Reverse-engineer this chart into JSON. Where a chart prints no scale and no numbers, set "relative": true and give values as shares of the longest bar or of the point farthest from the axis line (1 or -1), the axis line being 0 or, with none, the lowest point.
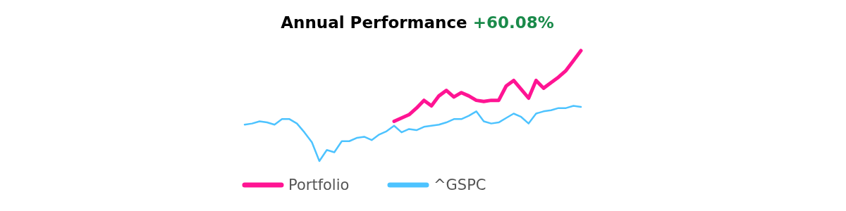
{
  "chart_data": {
    "type": "line",
    "title": "Annual Performance",
    "annotations": [
      "+60.08%"
    ],
    "relative": true,
    "legend": "bottom",
    "categories": [
      null,
      null,
      null,
      null,
      null,
      null,
      null,
      null,
      null,
      null,
      null,
      null,
      null,
      null,
      null,
      null,
      null,
      null,
      null,
      null,
      null,
      null,
      null,
      null,
      null,
      null,
      null,
      null,
      null,
      null,
      null,
      null,
      null,
      null,
      null,
      null,
      null,
      null,
      null,
      null,
      null,
      null,
      null,
      null,
      null,
      null
    ],
    "series": [
      {
        "name": "Portfolio",
        "color": "#ff1493",
        "values": [
          null,
          null,
          null,
          null,
          null,
          null,
          null,
          null,
          null,
          null,
          null,
          null,
          null,
          null,
          null,
          null,
          null,
          null,
          null,
          null,
          0.36,
          0.39,
          0.42,
          0.48,
          0.55,
          0.5,
          0.59,
          0.64,
          0.58,
          0.62,
          0.59,
          0.55,
          0.54,
          0.55,
          0.55,
          0.68,
          0.73,
          0.65,
          0.57,
          0.73,
          0.66,
          0.71,
          0.76,
          0.82,
          0.91,
          1
        ]
      },
      {
        "name": "^GSPC",
        "color": "#4dc3ff",
        "values": [
          0.33,
          0.34,
          0.36,
          0.35,
          0.33,
          0.38,
          0.38,
          0.34,
          0.26,
          0.17,
          0,
          0.1,
          0.08,
          0.18,
          0.18,
          0.21,
          0.22,
          0.19,
          0.24,
          0.27,
          0.32,
          0.26,
          0.29,
          0.28,
          0.31,
          0.32,
          0.33,
          0.35,
          0.38,
          0.38,
          0.41,
          0.45,
          0.36,
          0.34,
          0.35,
          0.39,
          0.43,
          0.4,
          0.34,
          0.43,
          0.45,
          0.46,
          0.48,
          0.48,
          0.5,
          0.49
        ]
      }
    ]
  }
}
